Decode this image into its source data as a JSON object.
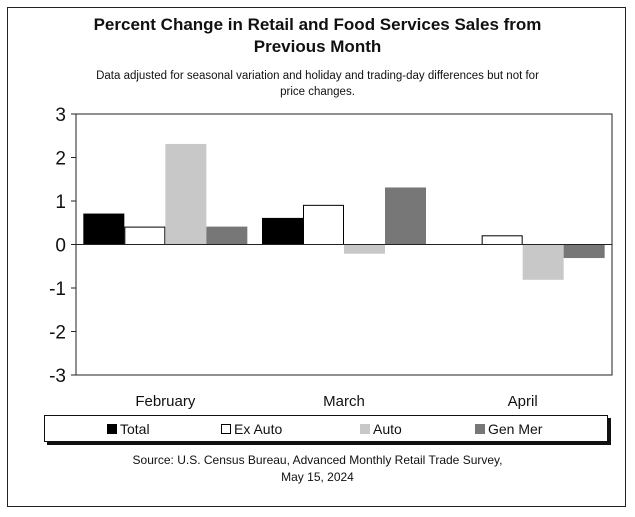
{
  "chart_data": {
    "type": "bar",
    "title_line1": "Percent Change in Retail and Food Services Sales from",
    "title_line2": "Previous Month",
    "subtitle_line1": "Data adjusted for seasonal variation and holiday and trading-day differences but not for",
    "subtitle_line2": "price changes.",
    "categories": [
      "February",
      "March",
      "April"
    ],
    "ylim": [
      -3,
      3
    ],
    "yticks": [
      3,
      2,
      1,
      0,
      -1,
      -2,
      -3
    ],
    "series": [
      {
        "name": "Total",
        "color": "#000000",
        "values": [
          0.7,
          0.6,
          0.0
        ]
      },
      {
        "name": "Ex Auto",
        "color": "#ffffff",
        "values": [
          0.4,
          0.9,
          0.2
        ]
      },
      {
        "name": "Auto",
        "color": "#c8c8c8",
        "values": [
          2.3,
          -0.2,
          -0.8
        ]
      },
      {
        "name": "Gen Mer",
        "color": "#777777",
        "values": [
          0.4,
          1.3,
          -0.3
        ]
      }
    ],
    "legend_position": "bottom",
    "source_line1": "Source: U.S. Census Bureau, Advanced Monthly Retail Trade Survey,",
    "source_line2": "May 15, 2024"
  }
}
